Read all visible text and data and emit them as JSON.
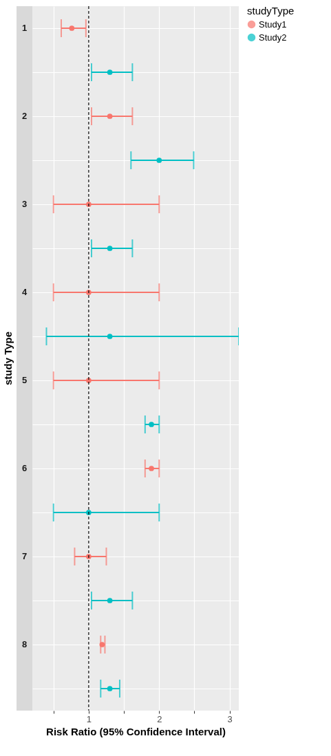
{
  "chart_data": {
    "type": "scatter",
    "orientation": "horizontal",
    "ylabel": "study Type",
    "xlabel": "Risk Ratio (95% Confidence Interval)",
    "legend_title": "studyType",
    "legend": "right",
    "marker": "circle",
    "grid": true,
    "categories": [
      "1",
      null,
      "2",
      null,
      "3",
      null,
      "4",
      null,
      "5",
      null,
      "6",
      null,
      "7",
      null,
      "8",
      null
    ],
    "xlim": [
      0.2,
      3.13
    ],
    "xticks": [
      {
        "value": 0.5,
        "label": null
      },
      1,
      {
        "value": 1.5,
        "label": null
      },
      2,
      {
        "value": 2.5,
        "label": null
      },
      3
    ],
    "ref_lines": [
      {
        "axis": "x",
        "value": 1,
        "color": "#000000",
        "line_style": "dashed"
      }
    ],
    "series": [
      {
        "name": "Study1",
        "color": "#f8766d",
        "values": [
          0.76,
          null,
          1.3,
          null,
          1.0,
          null,
          1.0,
          null,
          1.0,
          null,
          1.89,
          null,
          1.0,
          null,
          1.19,
          null
        ],
        "errors": [
          [
            0.61,
            0.96
          ],
          null,
          [
            1.04,
            1.62
          ],
          null,
          [
            0.5,
            2.0
          ],
          null,
          [
            0.5,
            2.0
          ],
          null,
          [
            0.5,
            2.0
          ],
          null,
          [
            1.8,
            2.0
          ],
          null,
          [
            0.8,
            1.25
          ],
          null,
          [
            1.17,
            1.23
          ],
          null
        ]
      },
      {
        "name": "Study2",
        "color": "#00bfc4",
        "values": [
          null,
          1.3,
          null,
          2.0,
          null,
          1.3,
          null,
          1.3,
          null,
          1.89,
          null,
          1.0,
          null,
          1.3,
          null,
          1.3
        ],
        "errors": [
          null,
          [
            1.04,
            1.62
          ],
          null,
          [
            1.6,
            2.49
          ],
          null,
          [
            1.04,
            1.62
          ],
          null,
          [
            0.4,
            3.13
          ],
          null,
          [
            1.8,
            2.0
          ],
          null,
          [
            0.5,
            2.0
          ],
          null,
          [
            1.04,
            1.62
          ],
          null,
          [
            1.17,
            1.44
          ]
        ]
      }
    ]
  }
}
